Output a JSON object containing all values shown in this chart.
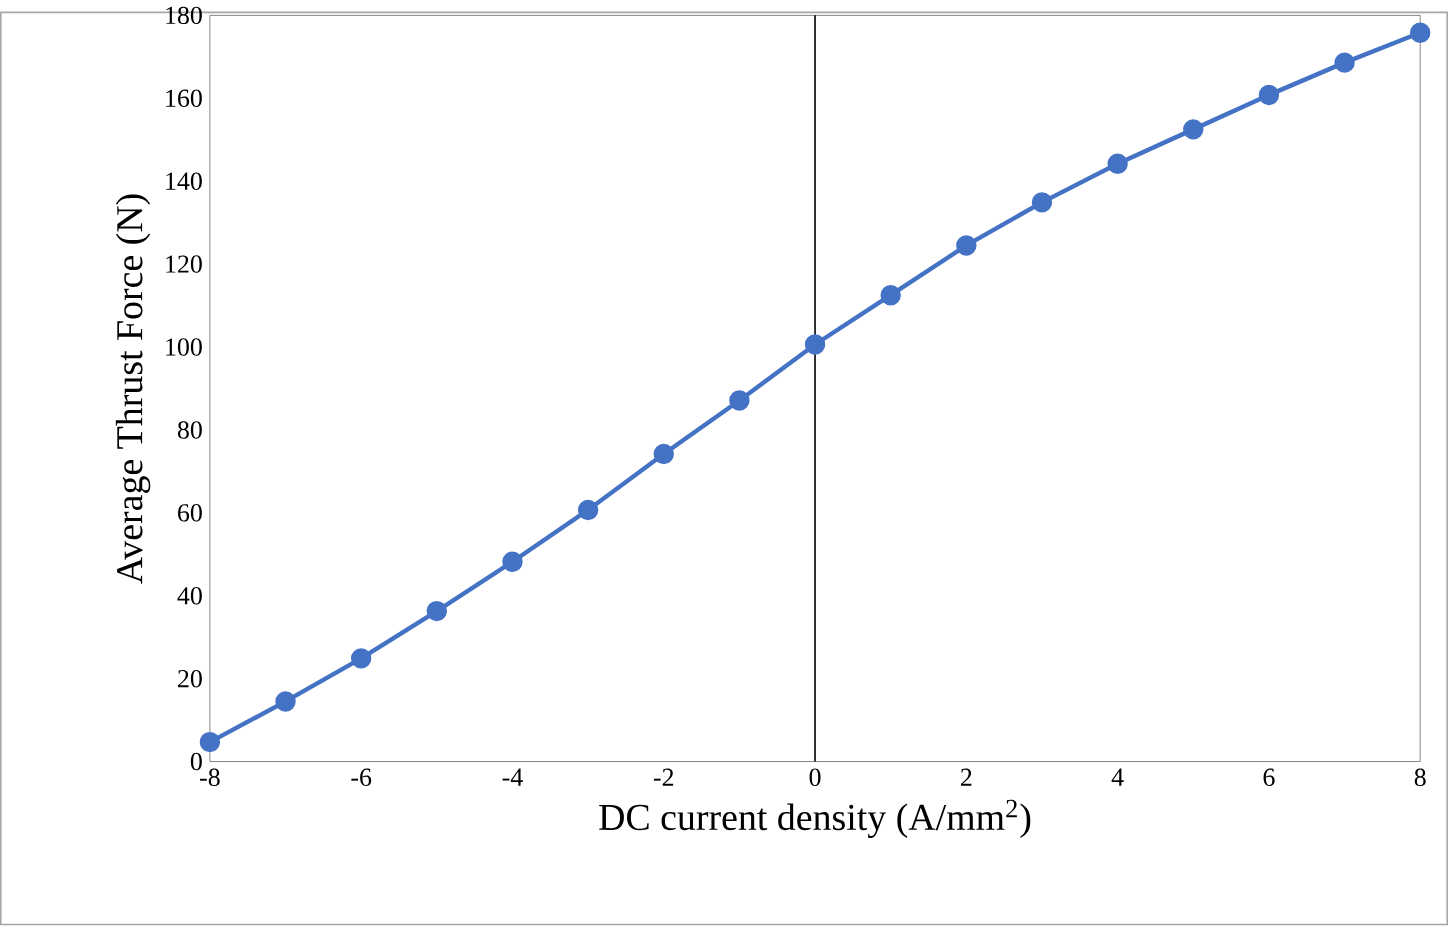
{
  "chart_data": {
    "type": "line",
    "xlabel": "DC current density (A/mm$^{2}$)",
    "ylabel": "Average Thrust Force (N)",
    "x": [
      -8,
      -7,
      -6,
      -5,
      -4,
      -3,
      -2,
      -1,
      0,
      1,
      2,
      3,
      4,
      5,
      6,
      7,
      8
    ],
    "series": [
      {
        "color": "#4472c4",
        "values": [
          4.7,
          14.5,
          24.9,
          36.3,
          48.2,
          60.7,
          74.2,
          87.1,
          100.6,
          112.5,
          124.5,
          134.9,
          144.2,
          152.5,
          160.8,
          168.6,
          175.8
        ]
      }
    ],
    "xlim": [
      -8,
      8
    ],
    "xticks": [
      -8,
      -6,
      -4,
      -2,
      0,
      2,
      4,
      6,
      8
    ],
    "ylim": [
      0,
      180
    ],
    "yticks": [
      0,
      20,
      40,
      60,
      80,
      100,
      120,
      140,
      160,
      180
    ],
    "marker": "circle",
    "line_style": "solid",
    "grid": false,
    "ref_lines": [
      {
        "axis": "x",
        "value": 0,
        "color": "#000000"
      }
    ]
  }
}
